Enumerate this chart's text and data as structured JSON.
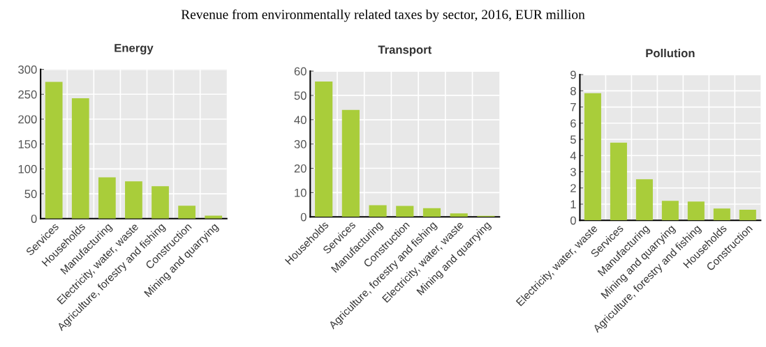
{
  "chart_data": [
    {
      "type": "bar",
      "title": "Energy",
      "categories": [
        "Services",
        "Households",
        "Manufacturing",
        "Electricity, water, waste",
        "Agriculture, forestry and fishing",
        "Construction",
        "Mining and quarrying"
      ],
      "values": [
        275,
        242,
        83,
        75,
        65,
        26,
        6
      ],
      "color": "#a9cd3a",
      "ylim": [
        0,
        300
      ],
      "yticks": [
        0,
        50,
        100,
        150,
        200,
        250,
        300
      ],
      "grid": true,
      "annotations": [
        "Revenue from environmentally related taxes by sector, 2016, EUR million"
      ]
    },
    {
      "type": "bar",
      "title": "Transport",
      "categories": [
        "Households",
        "Services",
        "Manufacturing",
        "Construction",
        "Agriculture, forestry and fishing",
        "Electricity, water, waste",
        "Mining and quarrying"
      ],
      "values": [
        55.7,
        44,
        4.8,
        4.5,
        3.6,
        1.4,
        0.4
      ],
      "color": "#a9cd3a",
      "ylim": [
        0,
        60
      ],
      "yticks": [
        0,
        10,
        20,
        30,
        40,
        50,
        60
      ],
      "grid": true
    },
    {
      "type": "bar",
      "title": "Pollution",
      "categories": [
        "Electricity, water, waste",
        "Services",
        "Manufacturing",
        "Mining and quarrying",
        "Agriculture, forestry and fishing",
        "Households",
        "Construction"
      ],
      "values": [
        7.85,
        4.8,
        2.54,
        1.2,
        1.16,
        0.73,
        0.65
      ],
      "color": "#a9cd3a",
      "ylim": [
        0,
        9
      ],
      "yticks": [
        0,
        1,
        2,
        3,
        4,
        5,
        6,
        7,
        8,
        9
      ],
      "grid": true
    }
  ]
}
